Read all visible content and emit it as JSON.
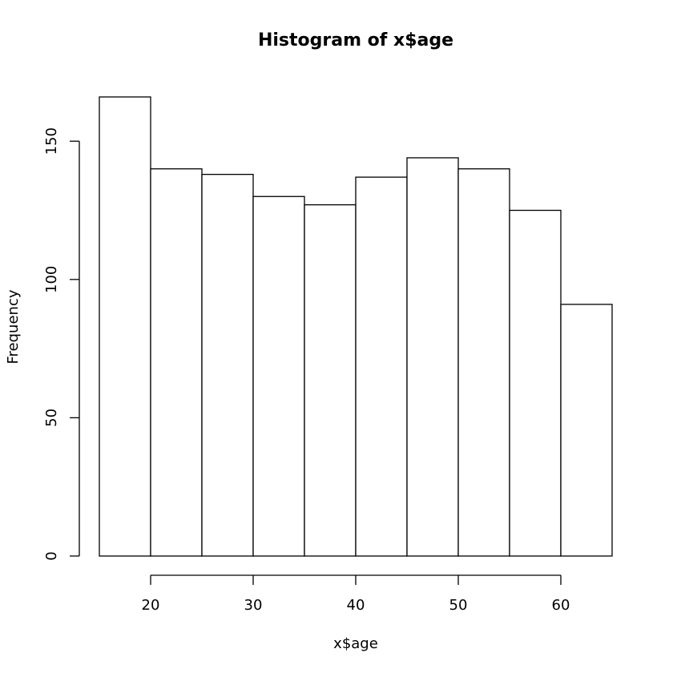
{
  "chart_data": {
    "type": "bar",
    "title": "Histogram of x$age",
    "xlabel": "x$age",
    "ylabel": "Frequency",
    "bins": [
      {
        "from": 15,
        "to": 20,
        "count": 166
      },
      {
        "from": 20,
        "to": 25,
        "count": 140
      },
      {
        "from": 25,
        "to": 30,
        "count": 138
      },
      {
        "from": 30,
        "to": 35,
        "count": 130
      },
      {
        "from": 35,
        "to": 40,
        "count": 127
      },
      {
        "from": 40,
        "to": 45,
        "count": 137
      },
      {
        "from": 45,
        "to": 50,
        "count": 144
      },
      {
        "from": 50,
        "to": 55,
        "count": 140
      },
      {
        "from": 55,
        "to": 60,
        "count": 125
      },
      {
        "from": 60,
        "to": 65,
        "count": 91
      }
    ],
    "xlim": [
      15,
      65
    ],
    "ylim": [
      0,
      166
    ],
    "x_ticks": [
      20,
      30,
      40,
      50,
      60
    ],
    "y_ticks": [
      0,
      50,
      100,
      150
    ],
    "grid": false,
    "bar_fill": "#ffffff",
    "bar_stroke": "#000000"
  }
}
